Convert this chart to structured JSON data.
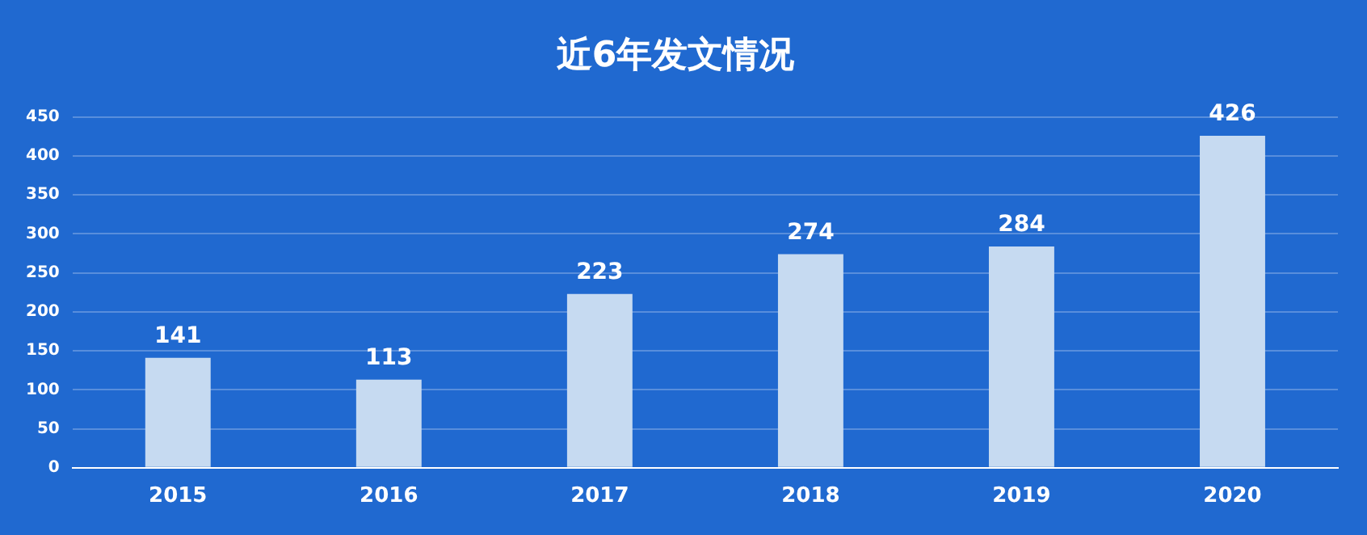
{
  "chart_data": {
    "type": "bar",
    "title": "近6年发文情况",
    "categories": [
      "2015",
      "2016",
      "2017",
      "2018",
      "2019",
      "2020"
    ],
    "values": [
      141,
      113,
      223,
      274,
      284,
      426
    ],
    "color": "#c6daf1",
    "ylim": [
      0,
      450
    ],
    "yticks": [
      0,
      50,
      100,
      150,
      200,
      250,
      300,
      350,
      400,
      450
    ],
    "grid": "y",
    "data_labels": true
  }
}
